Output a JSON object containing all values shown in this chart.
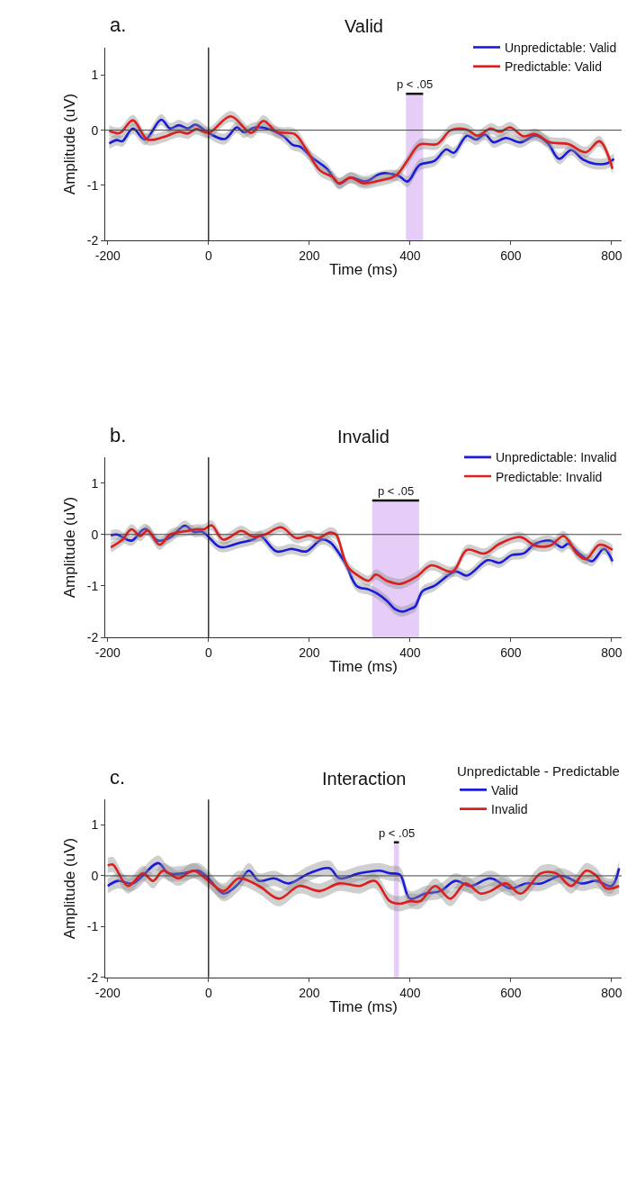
{
  "chart_data": [
    {
      "type": "line",
      "title": "Valid",
      "xlabel": "Time (ms)",
      "ylabel": "Amplitude (uV)",
      "annotations": [
        "a."
      ],
      "legend": "top right",
      "grid": false,
      "xlim": [
        -205,
        820
      ],
      "xticks": [
        -200,
        0,
        200,
        400,
        600,
        800
      ],
      "ylim": [
        -2,
        1.5
      ],
      "yticks": [
        -2,
        -1,
        0,
        1
      ],
      "ref_lines": [
        {
          "axis": "y",
          "value": 0
        },
        {
          "axis": "x",
          "value": 0
        }
      ],
      "bands": [
        {
          "axis": "x",
          "from": 392,
          "to": 426,
          "label": "p < .05",
          "color": "#e6cdf8"
        }
      ],
      "series": [
        {
          "name": "Unpredictable: Valid",
          "color": "#1a1adc",
          "x": [
            -197,
            -182,
            -171,
            -150,
            -126,
            -94,
            -76,
            -59,
            -41,
            -26,
            0,
            32,
            56,
            71,
            88,
            112,
            147,
            168,
            182,
            206,
            235,
            259,
            282,
            312,
            338,
            354,
            378,
            395,
            419,
            448,
            472,
            487,
            513,
            531,
            549,
            566,
            590,
            619,
            649,
            673,
            696,
            720,
            743,
            767,
            791,
            805
          ],
          "values": [
            -0.24,
            -0.18,
            -0.2,
            0.03,
            -0.17,
            0.19,
            0.03,
            0.09,
            0.03,
            0.1,
            -0.05,
            -0.16,
            0.05,
            -0.04,
            0.04,
            0.04,
            -0.1,
            -0.27,
            -0.3,
            -0.5,
            -0.7,
            -0.97,
            -0.86,
            -0.93,
            -0.8,
            -0.78,
            -0.83,
            -0.93,
            -0.63,
            -0.56,
            -0.35,
            -0.41,
            -0.1,
            -0.17,
            -0.08,
            -0.22,
            -0.14,
            -0.22,
            -0.1,
            -0.23,
            -0.52,
            -0.36,
            -0.53,
            -0.61,
            -0.6,
            -0.52
          ],
          "lower": [
            -0.34,
            -0.28,
            -0.3,
            -0.07,
            -0.27,
            0.09,
            -0.07,
            -0.01,
            -0.07,
            0,
            -0.15,
            -0.26,
            -0.05,
            -0.14,
            -0.06,
            -0.06,
            -0.2,
            -0.37,
            -0.4,
            -0.6,
            -0.8,
            -1.07,
            -0.96,
            -1.03,
            -0.95,
            -0.92,
            -0.93,
            -1.03,
            -0.73,
            -0.66,
            -0.45,
            -0.51,
            -0.2,
            -0.27,
            -0.18,
            -0.32,
            -0.24,
            -0.32,
            -0.2,
            -0.33,
            -0.62,
            -0.46,
            -0.63,
            -0.71,
            -0.7,
            -0.62
          ],
          "upper": [
            -0.14,
            -0.08,
            -0.1,
            0.13,
            -0.07,
            0.29,
            0.13,
            0.19,
            0.13,
            0.2,
            0.05,
            -0.06,
            0.15,
            0.06,
            0.14,
            0.14,
            0,
            -0.17,
            -0.2,
            -0.4,
            -0.6,
            -0.87,
            -0.76,
            -0.83,
            -0.75,
            -0.72,
            -0.73,
            -0.83,
            -0.53,
            -0.46,
            -0.25,
            -0.31,
            0,
            -0.07,
            0.02,
            -0.12,
            -0.04,
            -0.12,
            0,
            -0.13,
            -0.42,
            -0.26,
            -0.43,
            -0.51,
            -0.5,
            -0.42
          ]
        },
        {
          "name": "Predictable: Valid",
          "color": "#dc1e1e",
          "x": [
            -197,
            -176,
            -150,
            -121,
            -88,
            -59,
            -41,
            -24,
            0,
            44,
            85,
            109,
            135,
            171,
            194,
            221,
            247,
            259,
            282,
            306,
            341,
            372,
            395,
            419,
            454,
            481,
            513,
            534,
            560,
            578,
            599,
            625,
            649,
            678,
            714,
            749,
            776,
            802
          ],
          "values": [
            -0.01,
            -0.05,
            0.18,
            -0.17,
            -0.12,
            -0.03,
            -0.06,
            0.02,
            -0.05,
            0.25,
            -0.05,
            0.17,
            -0.03,
            -0.07,
            -0.35,
            -0.73,
            -0.85,
            -0.96,
            -0.86,
            -0.96,
            -0.91,
            -0.82,
            -0.55,
            -0.26,
            -0.25,
            0,
            0.01,
            -0.1,
            0.03,
            -0.03,
            0.05,
            -0.11,
            -0.07,
            -0.22,
            -0.25,
            -0.4,
            -0.2,
            -0.7
          ],
          "lower": [
            -0.11,
            -0.15,
            0.08,
            -0.27,
            -0.22,
            -0.13,
            -0.16,
            -0.08,
            -0.15,
            0.15,
            -0.15,
            0.07,
            -0.13,
            -0.17,
            -0.45,
            -0.83,
            -0.95,
            -1.06,
            -0.96,
            -1.06,
            -1.01,
            -0.92,
            -0.65,
            -0.36,
            -0.35,
            -0.1,
            -0.09,
            -0.2,
            -0.07,
            -0.13,
            -0.05,
            -0.21,
            -0.17,
            -0.32,
            -0.35,
            -0.5,
            -0.3,
            -0.8
          ],
          "upper": [
            0.09,
            0.05,
            0.28,
            -0.07,
            -0.02,
            0.07,
            0.04,
            0.12,
            0.05,
            0.35,
            0.05,
            0.27,
            0.07,
            0.03,
            -0.25,
            -0.63,
            -0.75,
            -0.86,
            -0.76,
            -0.86,
            -0.81,
            -0.72,
            -0.45,
            -0.16,
            -0.15,
            0.1,
            0.11,
            0,
            0.13,
            0.07,
            0.15,
            -0.01,
            0.03,
            -0.12,
            -0.15,
            -0.3,
            -0.1,
            -0.6
          ]
        }
      ]
    },
    {
      "type": "line",
      "title": "Invalid",
      "xlabel": "Time (ms)",
      "ylabel": "Amplitude (uV)",
      "annotations": [
        "b."
      ],
      "legend": "top right",
      "grid": false,
      "xlim": [
        -205,
        820
      ],
      "xticks": [
        -200,
        0,
        200,
        400,
        600,
        800
      ],
      "ylim": [
        -2,
        1.5
      ],
      "yticks": [
        -2,
        -1,
        0,
        1
      ],
      "ref_lines": [
        {
          "axis": "y",
          "value": 0
        },
        {
          "axis": "x",
          "value": 0
        }
      ],
      "bands": [
        {
          "axis": "x",
          "from": 325,
          "to": 418,
          "label": "p < .05",
          "color": "#e6cdf8"
        }
      ],
      "series": [
        {
          "name": "Unpredictable: Invalid",
          "color": "#1a1adc",
          "x": [
            -194,
            -182,
            -153,
            -126,
            -100,
            -76,
            -47,
            -29,
            -12,
            18,
            29,
            59,
            88,
            103,
            135,
            165,
            194,
            224,
            241,
            271,
            294,
            318,
            335,
            355,
            370,
            385,
            400,
            410,
            425,
            448,
            490,
            513,
            554,
            578,
            602,
            625,
            649,
            678,
            702,
            714,
            737,
            761,
            785,
            802
          ],
          "values": [
            -0.02,
            0,
            -0.12,
            0.11,
            -0.12,
            -0.06,
            0.17,
            0.05,
            0.05,
            -0.22,
            -0.25,
            -0.17,
            -0.1,
            -0.03,
            -0.33,
            -0.28,
            -0.33,
            -0.1,
            -0.15,
            -0.55,
            -1,
            -1.07,
            -1.15,
            -1.3,
            -1.45,
            -1.5,
            -1.45,
            -1.4,
            -1.1,
            -1,
            -0.72,
            -0.8,
            -0.5,
            -0.55,
            -0.4,
            -0.37,
            -0.18,
            -0.12,
            -0.25,
            -0.18,
            -0.38,
            -0.52,
            -0.28,
            -0.52
          ],
          "lower": [
            -0.12,
            -0.1,
            -0.22,
            0.01,
            -0.22,
            -0.16,
            0.07,
            -0.05,
            -0.05,
            -0.32,
            -0.35,
            -0.27,
            -0.2,
            -0.13,
            -0.43,
            -0.38,
            -0.43,
            -0.2,
            -0.25,
            -0.65,
            -1.1,
            -1.17,
            -1.25,
            -1.4,
            -1.55,
            -1.6,
            -1.55,
            -1.5,
            -1.2,
            -1.1,
            -0.82,
            -0.9,
            -0.6,
            -0.65,
            -0.5,
            -0.47,
            -0.28,
            -0.22,
            -0.35,
            -0.28,
            -0.48,
            -0.62,
            -0.38,
            -0.62
          ],
          "upper": [
            0.08,
            0.1,
            -0.02,
            0.21,
            -0.02,
            0.04,
            0.27,
            0.15,
            0.15,
            -0.12,
            -0.15,
            -0.07,
            0,
            0.07,
            -0.23,
            -0.18,
            -0.23,
            0,
            -0.05,
            -0.45,
            -0.9,
            -0.97,
            -1.05,
            -1.2,
            -1.35,
            -1.4,
            -1.35,
            -1.3,
            -1,
            -0.9,
            -0.62,
            -0.7,
            -0.4,
            -0.45,
            -0.3,
            -0.27,
            -0.08,
            -0.02,
            -0.15,
            -0.08,
            -0.28,
            -0.42,
            -0.18,
            -0.42
          ]
        },
        {
          "name": "Predictable: Invalid",
          "color": "#dc1e1e",
          "x": [
            -194,
            -171,
            -153,
            -135,
            -121,
            -97,
            -76,
            -47,
            -24,
            -9,
            6,
            29,
            65,
            88,
            112,
            144,
            174,
            200,
            218,
            241,
            253,
            276,
            300,
            318,
            332,
            354,
            381,
            413,
            442,
            484,
            513,
            548,
            578,
            619,
            649,
            678,
            705,
            732,
            749,
            776,
            802
          ],
          "values": [
            -0.25,
            -0.1,
            0.1,
            -0.03,
            0.08,
            -0.2,
            0,
            0.06,
            0.1,
            0.1,
            0.18,
            -0.1,
            0.07,
            -0.04,
            0,
            0.14,
            -0.07,
            -0.02,
            -0.07,
            0.04,
            0,
            -0.62,
            -0.82,
            -0.9,
            -0.78,
            -0.9,
            -0.96,
            -0.82,
            -0.6,
            -0.72,
            -0.3,
            -0.37,
            -0.18,
            -0.05,
            -0.22,
            -0.22,
            -0.03,
            -0.38,
            -0.48,
            -0.2,
            -0.3
          ],
          "lower": [
            -0.35,
            -0.2,
            0,
            -0.13,
            -0.02,
            -0.3,
            -0.1,
            -0.04,
            0,
            0,
            0.08,
            -0.2,
            -0.03,
            -0.14,
            -0.1,
            0.04,
            -0.17,
            -0.12,
            -0.17,
            -0.06,
            -0.1,
            -0.72,
            -0.92,
            -1,
            -0.88,
            -1,
            -1.06,
            -0.92,
            -0.7,
            -0.82,
            -0.4,
            -0.47,
            -0.28,
            -0.15,
            -0.32,
            -0.32,
            -0.13,
            -0.48,
            -0.58,
            -0.3,
            -0.4
          ],
          "upper": [
            -0.15,
            0,
            0.2,
            0.07,
            0.18,
            -0.1,
            0.1,
            0.16,
            0.2,
            0.2,
            0.28,
            0,
            0.17,
            0.06,
            0.1,
            0.24,
            0.03,
            0.08,
            0.03,
            0.14,
            0.1,
            -0.52,
            -0.72,
            -0.8,
            -0.68,
            -0.8,
            -0.86,
            -0.72,
            -0.5,
            -0.62,
            -0.2,
            -0.27,
            -0.08,
            0.05,
            -0.12,
            -0.12,
            0.07,
            -0.28,
            -0.38,
            -0.1,
            -0.2
          ]
        }
      ]
    },
    {
      "type": "line",
      "title": "Interaction",
      "xlabel": "Time (ms)",
      "ylabel": "Amplitude (uV)",
      "annotations": [
        "c."
      ],
      "legend": "top right",
      "legend_title": "Unpredictable - Predictable",
      "grid": false,
      "xlim": [
        -205,
        820
      ],
      "xticks": [
        -200,
        0,
        200,
        400,
        600,
        800
      ],
      "ylim": [
        -2,
        1.5
      ],
      "yticks": [
        -2,
        -1,
        0,
        1
      ],
      "ref_lines": [
        {
          "axis": "y",
          "value": 0
        },
        {
          "axis": "x",
          "value": 0
        }
      ],
      "bands": [
        {
          "axis": "x",
          "from": 368,
          "to": 378,
          "label": "p < .05",
          "color": "#e6cdf8"
        }
      ],
      "series": [
        {
          "name": "Valid",
          "color": "#1a1adc",
          "x": [
            -200,
            -180,
            -150,
            -100,
            -80,
            -50,
            -20,
            0,
            30,
            60,
            80,
            100,
            130,
            160,
            200,
            240,
            260,
            300,
            340,
            360,
            380,
            400,
            430,
            460,
            490,
            520,
            560,
            600,
            630,
            660,
            700,
            740,
            770,
            800,
            815
          ],
          "values": [
            -0.2,
            -0.1,
            -0.15,
            0.25,
            0.05,
            0.05,
            0.1,
            -0.05,
            -0.35,
            -0.15,
            0.1,
            -0.1,
            -0.05,
            -0.15,
            0.05,
            0.15,
            -0.05,
            0.05,
            0.1,
            0.05,
            0.02,
            -0.45,
            -0.35,
            -0.3,
            -0.1,
            -0.2,
            -0.05,
            -0.25,
            -0.15,
            -0.15,
            0,
            -0.15,
            -0.1,
            -0.2,
            0.15
          ],
          "lower": [
            -0.35,
            -0.25,
            -0.3,
            0.1,
            -0.1,
            -0.1,
            -0.05,
            -0.2,
            -0.5,
            -0.3,
            -0.05,
            -0.25,
            -0.2,
            -0.3,
            -0.1,
            0,
            -0.2,
            -0.1,
            -0.05,
            -0.1,
            -0.13,
            -0.6,
            -0.5,
            -0.45,
            -0.25,
            -0.35,
            -0.2,
            -0.4,
            -0.3,
            -0.3,
            -0.15,
            -0.3,
            -0.25,
            -0.35,
            0
          ],
          "upper": [
            -0.05,
            0.05,
            0,
            0.4,
            0.2,
            0.2,
            0.25,
            0.1,
            -0.2,
            0,
            0.25,
            0.05,
            0.1,
            0,
            0.2,
            0.3,
            0.1,
            0.2,
            0.25,
            0.2,
            0.17,
            -0.3,
            -0.2,
            -0.15,
            0.05,
            -0.05,
            0.1,
            -0.1,
            0,
            0,
            0.15,
            0,
            0.05,
            -0.05,
            0.3
          ]
        },
        {
          "name": "Invalid",
          "color": "#dc1e1e",
          "x": [
            -200,
            -190,
            -160,
            -130,
            -110,
            -90,
            -60,
            -30,
            0,
            30,
            60,
            100,
            140,
            180,
            220,
            260,
            300,
            330,
            360,
            380,
            400,
            420,
            450,
            480,
            510,
            540,
            560,
            590,
            620,
            660,
            690,
            720,
            750,
            770,
            790,
            815
          ],
          "values": [
            0.2,
            0.22,
            -0.2,
            0.05,
            -0.1,
            0.1,
            -0.05,
            0.1,
            -0.1,
            -0.3,
            -0.05,
            -0.2,
            -0.45,
            -0.2,
            -0.3,
            -0.15,
            -0.2,
            -0.1,
            -0.5,
            -0.55,
            -0.5,
            -0.5,
            -0.2,
            -0.45,
            -0.15,
            -0.35,
            -0.3,
            -0.15,
            -0.35,
            0.05,
            0.05,
            -0.2,
            0.1,
            0,
            -0.25,
            -0.2
          ],
          "lower": [
            0.05,
            0.07,
            -0.35,
            -0.1,
            -0.25,
            -0.05,
            -0.2,
            -0.05,
            -0.25,
            -0.45,
            -0.2,
            -0.35,
            -0.6,
            -0.35,
            -0.45,
            -0.3,
            -0.35,
            -0.25,
            -0.65,
            -0.7,
            -0.65,
            -0.65,
            -0.35,
            -0.6,
            -0.3,
            -0.5,
            -0.45,
            -0.3,
            -0.5,
            -0.1,
            -0.1,
            -0.35,
            -0.05,
            -0.15,
            -0.4,
            -0.35
          ],
          "upper": [
            0.35,
            0.37,
            -0.05,
            0.2,
            0.05,
            0.25,
            0.1,
            0.25,
            0.05,
            -0.15,
            0.1,
            -0.05,
            -0.3,
            -0.05,
            -0.15,
            0,
            -0.05,
            0.05,
            -0.35,
            -0.4,
            -0.35,
            -0.35,
            -0.05,
            -0.3,
            0,
            -0.2,
            -0.15,
            0,
            -0.2,
            0.2,
            0.2,
            -0.05,
            0.25,
            0.15,
            -0.1,
            -0.05
          ]
        }
      ]
    }
  ]
}
